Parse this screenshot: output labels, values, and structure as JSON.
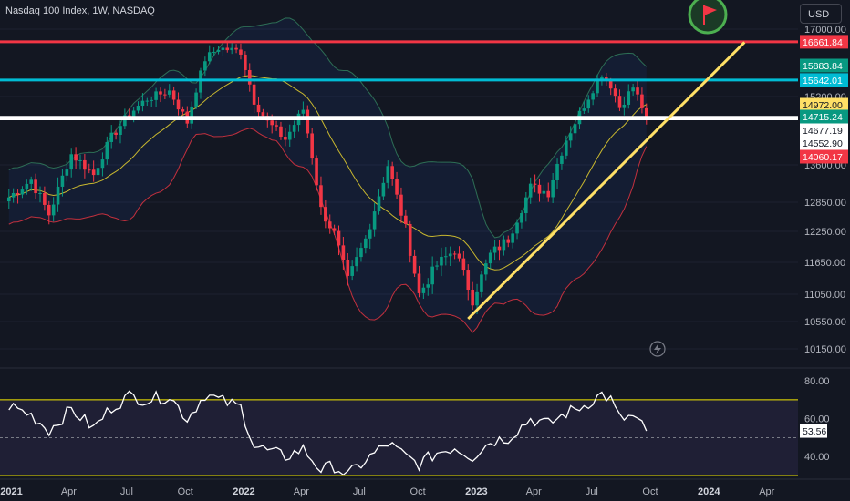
{
  "header": {
    "title": "Nasdaq 100 Index, 1W, NASDAQ",
    "currency": "USD"
  },
  "colors": {
    "background": "#131722",
    "bullish": "#089981",
    "bearish": "#f23645",
    "bb_upper": "#2d6e55",
    "bb_lower": "#c2303e",
    "bb_basis": "#c9b82f",
    "trendline": "#ffe066",
    "level_red": "#f23645",
    "level_cyan": "#00bcd4",
    "level_white": "#ffffff",
    "rsi_line": "#ffffff",
    "rsi_band": "#f5e800",
    "flag_green": "#4caf50",
    "flag_red": "#f23645"
  },
  "icons": {
    "flag": "flag-icon",
    "lightning": "lightning-icon"
  },
  "chart_data": [
    {
      "type": "candlestick",
      "title": "Nasdaq 100 Index, 1W, NASDAQ",
      "x_ticks": [
        "2021",
        "Apr",
        "Jul",
        "Oct",
        "2022",
        "Apr",
        "Jul",
        "Oct",
        "2023",
        "Apr",
        "Jul",
        "Oct",
        "2024",
        "Apr"
      ],
      "y_ticks": [
        10150,
        10550,
        11050,
        11650,
        12250,
        12850,
        13600,
        15200,
        17000
      ],
      "y_tick_labels": [
        "10150.00",
        "10550.00",
        "11050.00",
        "11650.00",
        "12250.00",
        "12850.00",
        "13600.00",
        "15200.00",
        "17000.00"
      ],
      "ylim": [
        10000,
        17050
      ],
      "xlim": [
        "2020-12-14",
        "2024-05-20"
      ],
      "overlays": [
        "Bollinger Bands",
        "Moving average basis"
      ],
      "horizontal_levels": [
        {
          "value": 16661.84,
          "label": "16661.84",
          "color": "#f23645"
        },
        {
          "value": 15642.01,
          "label": "15642.01",
          "color": "#00bcd4"
        },
        {
          "value": 14715.24,
          "label": "14715.24",
          "color": "#ffffff"
        },
        {
          "value": 14677.19,
          "label": "14677.19",
          "color": "#ffffff"
        }
      ],
      "price_labels": [
        {
          "value": 15883.84,
          "label": "15883.84",
          "color": "#089981"
        },
        {
          "value": 14972.0,
          "label": "14972.00",
          "color": "#ffe066"
        },
        {
          "value": 14715.24,
          "label": "14715.24",
          "color": "#089981"
        },
        {
          "value": 14677.19,
          "label": "14677.19",
          "color": "#ffffff"
        },
        {
          "value": 14552.9,
          "label": "14552.90",
          "color": "#ffffff"
        },
        {
          "value": 14060.17,
          "label": "14060.17",
          "color": "#f23645"
        }
      ],
      "trendline": {
        "start": {
          "x": "2022-12-19",
          "y": 10600
        },
        "end": {
          "x": "2024-02-26",
          "y": 16650
        }
      },
      "close_series": {
        "dates": [
          "2020-12-28",
          "2021-02-01",
          "2021-03-01",
          "2021-04-05",
          "2021-05-10",
          "2021-06-07",
          "2021-07-05",
          "2021-08-02",
          "2021-09-06",
          "2021-10-04",
          "2021-11-01",
          "2021-11-22",
          "2021-12-27",
          "2022-01-17",
          "2022-02-07",
          "2022-03-07",
          "2022-04-04",
          "2022-05-02",
          "2022-05-23",
          "2022-06-13",
          "2022-07-11",
          "2022-08-15",
          "2022-09-12",
          "2022-10-03",
          "2022-10-31",
          "2022-11-28",
          "2022-12-26",
          "2023-01-23",
          "2023-02-20",
          "2023-03-27",
          "2023-04-24",
          "2023-05-22",
          "2023-06-19",
          "2023-07-17",
          "2023-07-31",
          "2023-08-14",
          "2023-09-04",
          "2023-09-25"
        ],
        "values": [
          12950,
          13300,
          12600,
          13850,
          13400,
          14250,
          14800,
          15150,
          15350,
          14600,
          16200,
          16500,
          16400,
          15100,
          14600,
          14200,
          14900,
          12700,
          12200,
          11300,
          12100,
          13600,
          12300,
          11050,
          11600,
          11900,
          10950,
          11800,
          12100,
          13150,
          13050,
          14200,
          15000,
          15800,
          15500,
          14950,
          15450,
          14715
        ]
      }
    },
    {
      "type": "line",
      "title": "RSI",
      "y_ticks": [
        40,
        60,
        80
      ],
      "y_tick_labels": [
        "40.00",
        "60.00",
        "80.00"
      ],
      "ylim": [
        30,
        82
      ],
      "bands": {
        "upper": 70,
        "lower": 30,
        "middle": 50
      },
      "current_value": 53.56,
      "current_label": "53.56",
      "dates": [
        "2020-12-28",
        "2021-02-01",
        "2021-03-01",
        "2021-04-05",
        "2021-05-10",
        "2021-06-07",
        "2021-07-05",
        "2021-08-02",
        "2021-09-06",
        "2021-10-04",
        "2021-11-01",
        "2021-11-22",
        "2021-12-27",
        "2022-01-17",
        "2022-02-07",
        "2022-03-07",
        "2022-04-04",
        "2022-05-02",
        "2022-05-23",
        "2022-06-13",
        "2022-07-11",
        "2022-08-15",
        "2022-09-12",
        "2022-10-03",
        "2022-10-31",
        "2022-11-28",
        "2022-12-26",
        "2023-01-23",
        "2023-02-20",
        "2023-03-27",
        "2023-04-24",
        "2023-05-22",
        "2023-06-19",
        "2023-07-17",
        "2023-07-31",
        "2023-08-14",
        "2023-09-04",
        "2023-09-25"
      ],
      "values": [
        67,
        62,
        54,
        65,
        55,
        66,
        72,
        70,
        72,
        60,
        73,
        70,
        66,
        46,
        43,
        40,
        44,
        33,
        35,
        30,
        38,
        47,
        40,
        36,
        42,
        45,
        40,
        48,
        50,
        60,
        57,
        63,
        67,
        73,
        70,
        60,
        61,
        53.56
      ]
    }
  ]
}
